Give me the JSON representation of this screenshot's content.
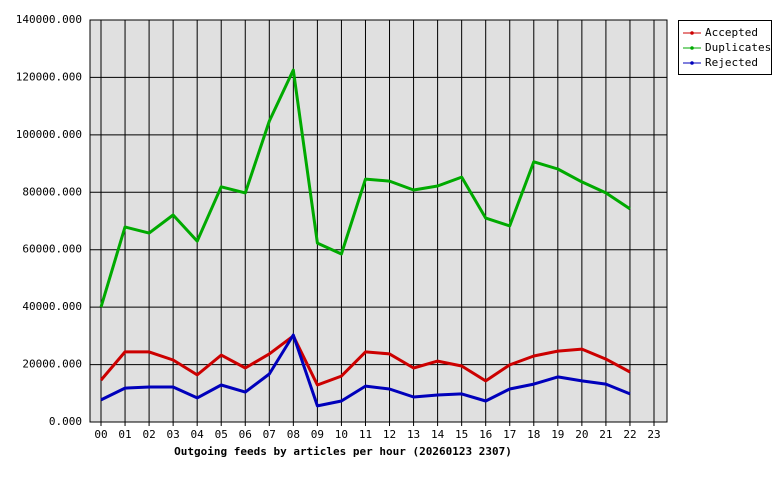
{
  "chart_data": {
    "type": "line",
    "title": "Outgoing feeds by articles per hour (20260123 2307)",
    "categories": [
      "00",
      "01",
      "02",
      "03",
      "04",
      "05",
      "06",
      "07",
      "08",
      "09",
      "10",
      "11",
      "12",
      "13",
      "14",
      "15",
      "16",
      "17",
      "18",
      "19",
      "20",
      "21",
      "22",
      "23"
    ],
    "series": [
      {
        "name": "Accepted",
        "color": "#cc0000",
        "values": [
          14600,
          24400,
          24400,
          21600,
          16400,
          23300,
          18800,
          23700,
          30000,
          12900,
          16000,
          24400,
          23700,
          18800,
          21200,
          19500,
          14300,
          19900,
          23000,
          24700,
          25400,
          21900,
          17400,
          null
        ]
      },
      {
        "name": "Duplicates",
        "color": "#00aa00",
        "values": [
          40000,
          67900,
          65800,
          72100,
          63000,
          81900,
          79800,
          104800,
          122600,
          62300,
          58500,
          84600,
          83900,
          80800,
          82200,
          85300,
          71000,
          68300,
          90600,
          88100,
          83600,
          79800,
          74200,
          null
        ]
      },
      {
        "name": "Rejected",
        "color": "#0000bb",
        "values": [
          7700,
          11800,
          12200,
          12200,
          8400,
          12900,
          10400,
          16700,
          30300,
          5600,
          7300,
          12500,
          11500,
          8700,
          9400,
          9800,
          7300,
          11500,
          13200,
          15700,
          14300,
          13200,
          9800,
          null
        ]
      }
    ],
    "ylim": [
      0,
      140000
    ],
    "yticks": [
      {
        "value": 0,
        "label": "0.000"
      },
      {
        "value": 20000,
        "label": "20000.000"
      },
      {
        "value": 40000,
        "label": "40000.000"
      },
      {
        "value": 60000,
        "label": "60000.000"
      },
      {
        "value": 80000,
        "label": "80000.000"
      },
      {
        "value": 100000,
        "label": "100000.000"
      },
      {
        "value": 120000,
        "label": "120000.000"
      },
      {
        "value": 140000,
        "label": "140000.000"
      }
    ],
    "grid": true
  }
}
